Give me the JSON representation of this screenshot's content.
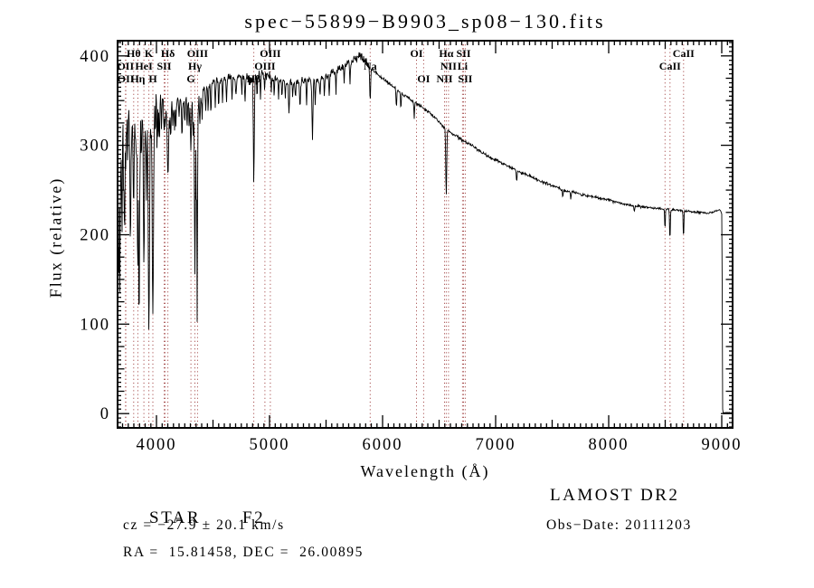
{
  "title": "spec−55899−B9903_sp08−130.fits",
  "annotations": {
    "object_class": "STAR",
    "subclass": "F2",
    "cz": "cz = −27.9 ± 20.1 km/s",
    "radec": "RA =  15.81458, DEC =  26.00895",
    "survey": "LAMOST DR2",
    "obs_date": "Obs−Date: 20111203"
  },
  "chart_data": {
    "type": "line",
    "title": "spec−55899−B9903_sp08−130.fits",
    "xlabel": "Wavelength (Å)",
    "ylabel": "Flux (relative)",
    "xlim": [
      3656,
      9096
    ],
    "ylim": [
      -16,
      417
    ],
    "x_ticks": [
      4000,
      5000,
      6000,
      7000,
      8000,
      9000
    ],
    "y_ticks": [
      0,
      100,
      200,
      300,
      400
    ],
    "x_minor_step": 50,
    "x_medium_step": 500,
    "y_minor_step": 5,
    "y_medium_step": 25,
    "grid": false,
    "line_color": "#000000",
    "marker_color": "#993333",
    "line_markers": [
      {
        "label": "Hθ",
        "wavelength": 3798,
        "row": 1
      },
      {
        "label": "K",
        "wavelength": 3933,
        "row": 1
      },
      {
        "label": "Hδ",
        "wavelength": 4101,
        "row": 1
      },
      {
        "label": "OIII",
        "wavelength": 4363,
        "row": 1
      },
      {
        "label": "OIII",
        "wavelength": 5007,
        "row": 1
      },
      {
        "label": "OI",
        "wavelength": 6300,
        "row": 1
      },
      {
        "label": "Hα",
        "wavelength": 6563,
        "row": 1
      },
      {
        "label": "SII",
        "wavelength": 6716,
        "row": 1
      },
      {
        "label": "CaII",
        "wavelength": 8662,
        "row": 1
      },
      {
        "label": "OII",
        "wavelength": 3726,
        "row": 2
      },
      {
        "label": "HeI",
        "wavelength": 3889,
        "row": 2
      },
      {
        "label": "SII",
        "wavelength": 4068,
        "row": 2
      },
      {
        "label": "Hγ",
        "wavelength": 4340,
        "row": 2
      },
      {
        "label": "OIII",
        "wavelength": 4959,
        "row": 2
      },
      {
        "label": "Na",
        "wavelength": 5890,
        "row": 2
      },
      {
        "label": "NII",
        "wavelength": 6583,
        "row": 2
      },
      {
        "label": "Li",
        "wavelength": 6707,
        "row": 2
      },
      {
        "label": "CaII",
        "wavelength": 8542,
        "row": 2
      },
      {
        "label": "OII",
        "wavelength": 3729,
        "row": 3
      },
      {
        "label": "Hη",
        "wavelength": 3835,
        "row": 3
      },
      {
        "label": "H",
        "wavelength": 3968,
        "row": 3
      },
      {
        "label": "G",
        "wavelength": 4305,
        "row": 3
      },
      {
        "label": "Hβ",
        "wavelength": 4861,
        "row": 3
      },
      {
        "label": "OI",
        "wavelength": 6363,
        "row": 3
      },
      {
        "label": "NII",
        "wavelength": 6548,
        "row": 3
      },
      {
        "label": "SII",
        "wavelength": 6731,
        "row": 3
      }
    ],
    "unlabeled_marker_wavelengths": [
      4076,
      8498
    ],
    "series": [
      {
        "name": "flux",
        "description": "Observed spectrum: continuum anchors [wavelength_A, flux_relative], absorption lines [center_A, core_flux, sigma_A], noise sigma breakpoints [max_wavelength_A, sigma_flux]",
        "continuum": [
          [
            3656,
            350
          ],
          [
            3680,
            362
          ],
          [
            3700,
            368
          ],
          [
            3720,
            364
          ],
          [
            3740,
            362
          ],
          [
            3760,
            360
          ],
          [
            3780,
            360
          ],
          [
            3800,
            362
          ],
          [
            3820,
            360
          ],
          [
            3840,
            358
          ],
          [
            3860,
            360
          ],
          [
            3880,
            362
          ],
          [
            3900,
            362
          ],
          [
            3920,
            363
          ],
          [
            3940,
            364
          ],
          [
            3960,
            362
          ],
          [
            3980,
            362
          ],
          [
            4000,
            364
          ],
          [
            4030,
            356
          ],
          [
            4060,
            348
          ],
          [
            4090,
            344
          ],
          [
            4120,
            342
          ],
          [
            4160,
            344
          ],
          [
            4200,
            350
          ],
          [
            4240,
            352
          ],
          [
            4280,
            348
          ],
          [
            4320,
            344
          ],
          [
            4360,
            344
          ],
          [
            4400,
            358
          ],
          [
            4440,
            364
          ],
          [
            4480,
            368
          ],
          [
            4520,
            370
          ],
          [
            4560,
            372
          ],
          [
            4600,
            374
          ],
          [
            4650,
            375
          ],
          [
            4700,
            376
          ],
          [
            4750,
            377
          ],
          [
            4800,
            376
          ],
          [
            4840,
            373
          ],
          [
            4880,
            377
          ],
          [
            4920,
            379
          ],
          [
            4960,
            380
          ],
          [
            5000,
            378
          ],
          [
            5050,
            375
          ],
          [
            5100,
            373
          ],
          [
            5150,
            371
          ],
          [
            5200,
            370
          ],
          [
            5250,
            372
          ],
          [
            5300,
            374
          ],
          [
            5350,
            372
          ],
          [
            5400,
            372
          ],
          [
            5450,
            375
          ],
          [
            5500,
            378
          ],
          [
            5550,
            381
          ],
          [
            5600,
            384
          ],
          [
            5650,
            388
          ],
          [
            5700,
            392
          ],
          [
            5750,
            396
          ],
          [
            5800,
            399
          ],
          [
            5840,
            396
          ],
          [
            5880,
            390
          ],
          [
            5920,
            384
          ],
          [
            5960,
            379
          ],
          [
            6000,
            375
          ],
          [
            6080,
            367
          ],
          [
            6160,
            359
          ],
          [
            6240,
            352
          ],
          [
            6320,
            345
          ],
          [
            6400,
            338
          ],
          [
            6480,
            329
          ],
          [
            6560,
            318
          ],
          [
            6640,
            311
          ],
          [
            6720,
            305
          ],
          [
            6800,
            299
          ],
          [
            6880,
            292
          ],
          [
            6960,
            286
          ],
          [
            7040,
            281
          ],
          [
            7120,
            276
          ],
          [
            7200,
            271
          ],
          [
            7280,
            267
          ],
          [
            7360,
            262
          ],
          [
            7440,
            258
          ],
          [
            7520,
            254
          ],
          [
            7600,
            250
          ],
          [
            7680,
            248
          ],
          [
            7760,
            245
          ],
          [
            7840,
            243
          ],
          [
            7920,
            241
          ],
          [
            8000,
            239
          ],
          [
            8080,
            236
          ],
          [
            8160,
            234
          ],
          [
            8240,
            232
          ],
          [
            8320,
            231
          ],
          [
            8400,
            230
          ],
          [
            8480,
            229
          ],
          [
            8560,
            228
          ],
          [
            8640,
            227
          ],
          [
            8720,
            226
          ],
          [
            8800,
            225
          ],
          [
            8880,
            224
          ],
          [
            8940,
            226
          ],
          [
            8980,
            228
          ],
          [
            9000,
            224
          ],
          [
            9004,
            140
          ],
          [
            9007,
            6
          ],
          [
            9012,
            1
          ],
          [
            9096,
            1
          ]
        ],
        "absorption_lines": [
          [
            3660,
            130,
            5
          ],
          [
            3668,
            160,
            4
          ],
          [
            3676,
            145,
            4
          ],
          [
            3686,
            250,
            4
          ],
          [
            3695,
            210,
            4
          ],
          [
            3703,
            320,
            3
          ],
          [
            3710,
            240,
            4
          ],
          [
            3718,
            196,
            5
          ],
          [
            3727,
            262,
            4
          ],
          [
            3736,
            305,
            4
          ],
          [
            3745,
            282,
            4
          ],
          [
            3754,
            325,
            3
          ],
          [
            3762,
            300,
            4
          ],
          [
            3770,
            188,
            5
          ],
          [
            3780,
            298,
            4
          ],
          [
            3790,
            318,
            3
          ],
          [
            3798,
            232,
            5
          ],
          [
            3806,
            310,
            3
          ],
          [
            3814,
            300,
            4
          ],
          [
            3822,
            280,
            4
          ],
          [
            3830,
            318,
            3
          ],
          [
            3835,
            155,
            5
          ],
          [
            3846,
            103,
            5
          ],
          [
            3856,
            288,
            4
          ],
          [
            3866,
            282,
            4
          ],
          [
            3874,
            318,
            3
          ],
          [
            3882,
            300,
            3
          ],
          [
            3889,
            160,
            5
          ],
          [
            3898,
            298,
            3
          ],
          [
            3906,
            302,
            3
          ],
          [
            3912,
            238,
            4
          ],
          [
            3920,
            315,
            3
          ],
          [
            3933,
            92,
            6
          ],
          [
            3946,
            308,
            3
          ],
          [
            3954,
            300,
            3
          ],
          [
            3968,
            110,
            6
          ],
          [
            3980,
            302,
            3
          ],
          [
            3990,
            310,
            3
          ],
          [
            4005,
            294,
            3
          ],
          [
            4016,
            308,
            3
          ],
          [
            4026,
            302,
            3
          ],
          [
            4045,
            320,
            3
          ],
          [
            4068,
            316,
            4
          ],
          [
            4077,
            320,
            3
          ],
          [
            4101,
            266,
            6
          ],
          [
            4115,
            316,
            3
          ],
          [
            4126,
            312,
            3
          ],
          [
            4144,
            318,
            3
          ],
          [
            4160,
            322,
            3
          ],
          [
            4172,
            316,
            3
          ],
          [
            4200,
            328,
            3
          ],
          [
            4226,
            312,
            4
          ],
          [
            4250,
            325,
            3
          ],
          [
            4271,
            320,
            3
          ],
          [
            4290,
            318,
            3
          ],
          [
            4305,
            294,
            4
          ],
          [
            4325,
            312,
            3
          ],
          [
            4340,
            152,
            4
          ],
          [
            4352,
            235,
            3
          ],
          [
            4360,
            98,
            3
          ],
          [
            4383,
            322,
            3
          ],
          [
            4404,
            330,
            3
          ],
          [
            4435,
            336,
            3
          ],
          [
            4457,
            340,
            3
          ],
          [
            4481,
            336,
            3
          ],
          [
            4520,
            342,
            3
          ],
          [
            4550,
            344,
            3
          ],
          [
            4584,
            346,
            3
          ],
          [
            4620,
            348,
            3
          ],
          [
            4668,
            350,
            3
          ],
          [
            4703,
            352,
            3
          ],
          [
            4755,
            354,
            3
          ],
          [
            4784,
            352,
            3
          ],
          [
            4861,
            256,
            4
          ],
          [
            4890,
            356,
            3
          ],
          [
            4920,
            352,
            3
          ],
          [
            4957,
            362,
            3
          ],
          [
            5015,
            360,
            3
          ],
          [
            5041,
            358,
            3
          ],
          [
            5080,
            355,
            3
          ],
          [
            5110,
            352,
            3
          ],
          [
            5140,
            350,
            3
          ],
          [
            5172,
            336,
            4
          ],
          [
            5205,
            352,
            3
          ],
          [
            5230,
            352,
            3
          ],
          [
            5270,
            345,
            4
          ],
          [
            5328,
            342,
            3
          ],
          [
            5380,
            306,
            4
          ],
          [
            5404,
            348,
            3
          ],
          [
            5446,
            352,
            3
          ],
          [
            5485,
            356,
            3
          ],
          [
            5528,
            356,
            3
          ],
          [
            5588,
            360,
            3
          ],
          [
            5660,
            366,
            3
          ],
          [
            5712,
            370,
            3
          ],
          [
            5890,
            352,
            4
          ],
          [
            6122,
            342,
            3
          ],
          [
            6162,
            340,
            3
          ],
          [
            6280,
            330,
            3
          ],
          [
            6563,
            244,
            4
          ],
          [
            7186,
            258,
            3
          ],
          [
            7594,
            242,
            3
          ],
          [
            7665,
            238,
            3
          ],
          [
            8227,
            226,
            3
          ],
          [
            8498,
            206,
            3
          ],
          [
            8542,
            192,
            3
          ],
          [
            8662,
            196,
            3
          ]
        ],
        "noise_sigma_breakpoints": [
          [
            3700,
            34
          ],
          [
            4000,
            15
          ],
          [
            4400,
            12
          ],
          [
            5000,
            10
          ],
          [
            5920,
            8
          ],
          [
            6400,
            3.6
          ],
          [
            7300,
            3
          ],
          [
            8400,
            2.6
          ],
          [
            9002,
            2.2
          ],
          [
            9100,
            0.7
          ]
        ]
      }
    ]
  }
}
